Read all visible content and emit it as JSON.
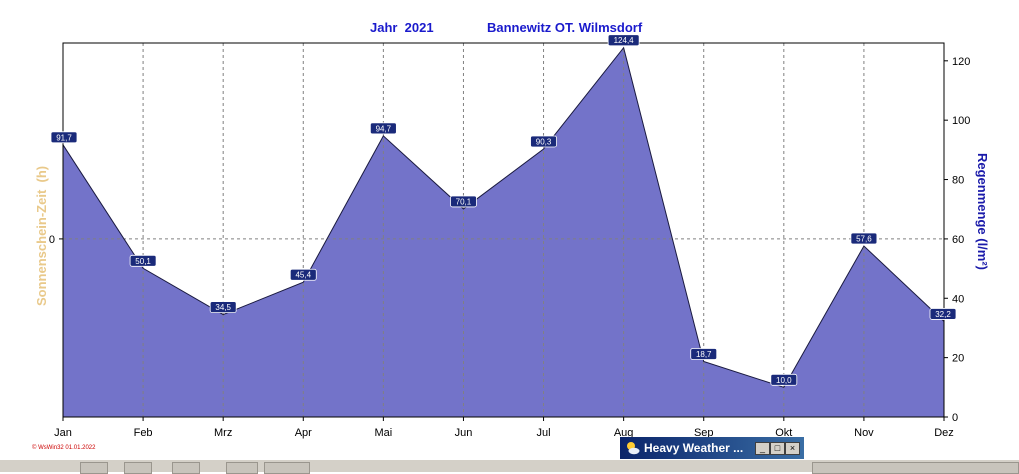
{
  "header": {
    "year_label": "Jahr  2021",
    "station_label": "Bannewitz OT. Wilmsdorf"
  },
  "axes": {
    "right_label": "Regenmenge  (l/m²)",
    "left_label": "Sonnenschein-Zeit  (h)",
    "left_tick": "0"
  },
  "credit": "© WsWin32  01.01.2022",
  "popup": {
    "title": "Heavy Weather ...",
    "buttons": [
      "_",
      "□",
      "×"
    ]
  },
  "colors": {
    "fill": "#7373c9",
    "line": "#1a1a40",
    "grid": "#808080",
    "label_bg": "#1a2a7a",
    "title": "#1a1acc"
  },
  "chart_data": {
    "type": "area",
    "categories": [
      "Jan",
      "Feb",
      "Mrz",
      "Apr",
      "Mai",
      "Jun",
      "Jul",
      "Aug",
      "Sep",
      "Okt",
      "Nov",
      "Dez"
    ],
    "series": [
      {
        "values": [
          91.7,
          50.1,
          34.5,
          45.4,
          94.7,
          70.1,
          90.3,
          124.4,
          18.7,
          10.0,
          57.6,
          32.2
        ],
        "labels": [
          "91,7",
          "50,1",
          "34,5",
          "45,4",
          "94,7",
          "70,1",
          "90,3",
          "124,4",
          "18,7",
          "10,0",
          "57,6",
          "32,2"
        ]
      }
    ],
    "yticks_right": [
      0,
      20,
      40,
      60,
      80,
      100,
      120
    ],
    "ylim": [
      0,
      126
    ],
    "grid": true
  }
}
